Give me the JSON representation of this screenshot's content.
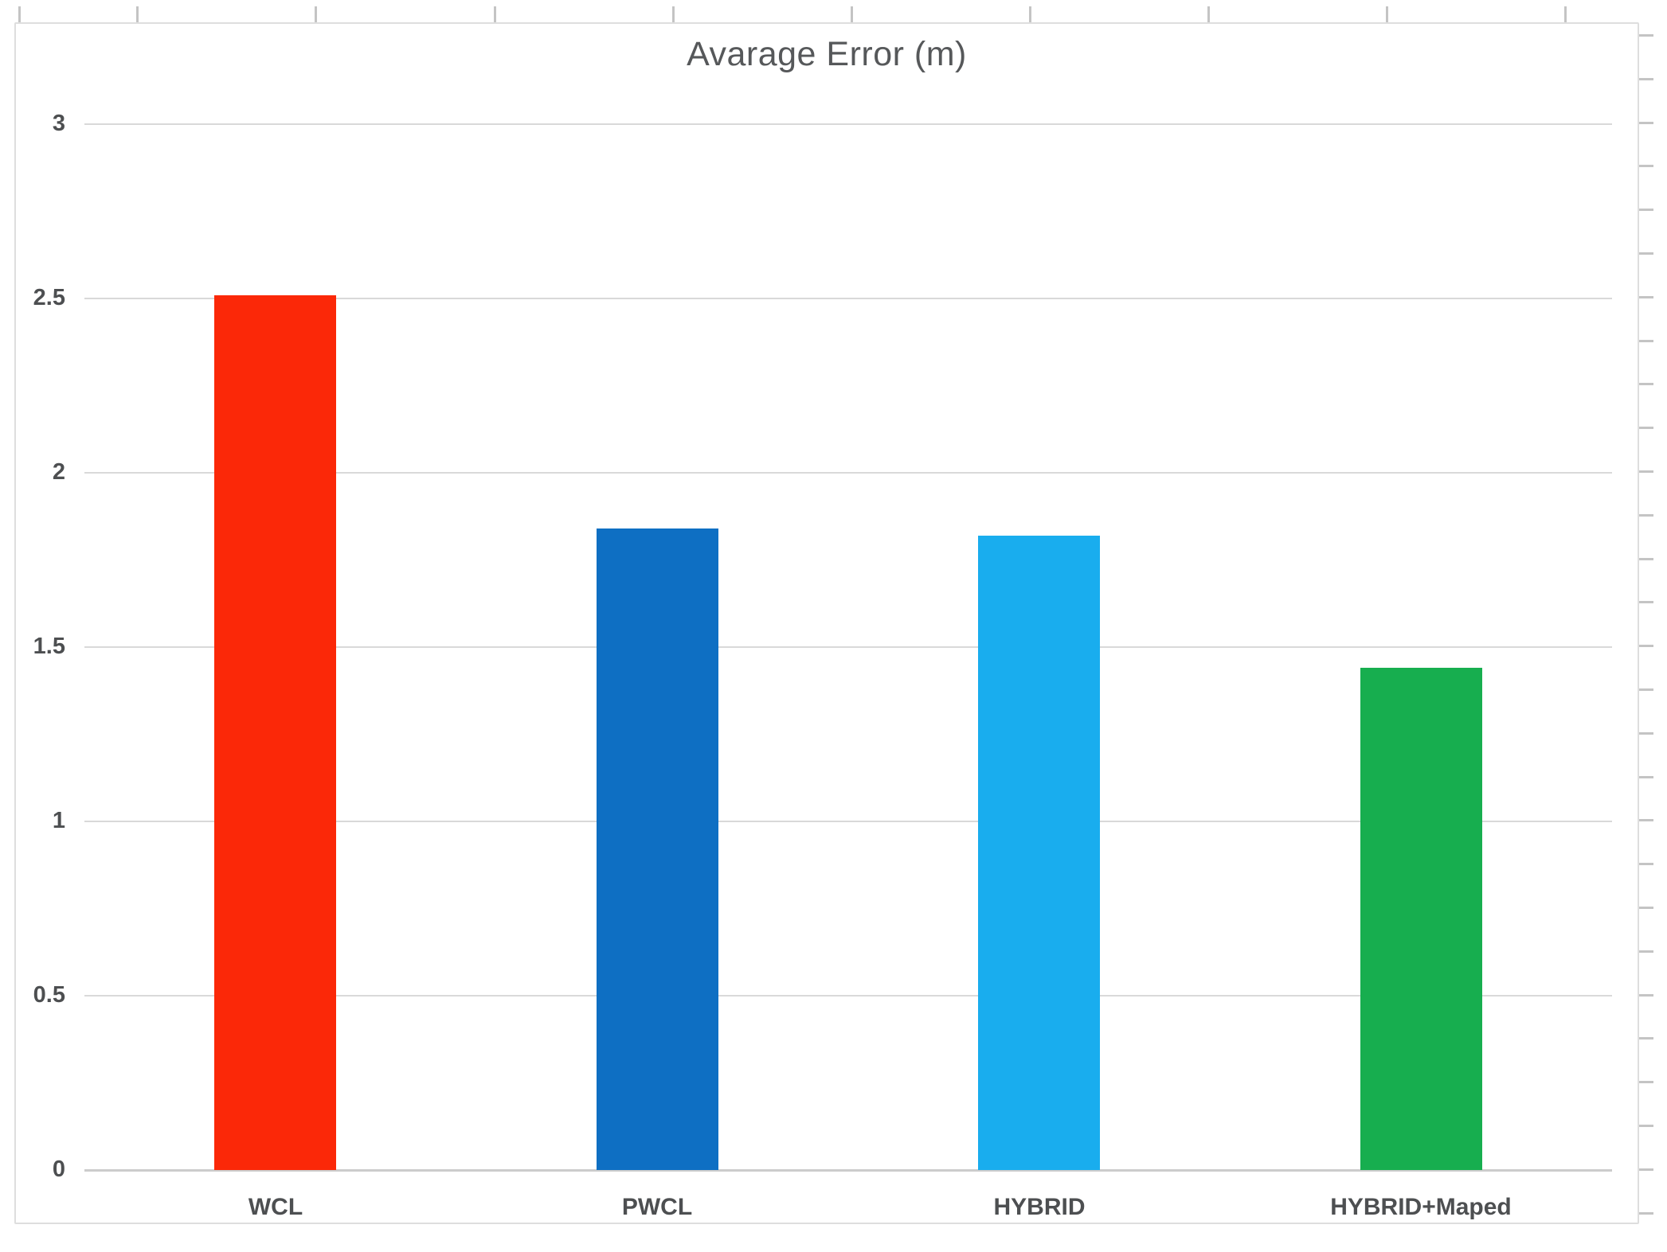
{
  "chart_data": {
    "type": "bar",
    "title": "Avarage Error (m)",
    "categories": [
      "WCL",
      "PWCL",
      "HYBRID",
      "HYBRID+Maped"
    ],
    "values": [
      2.51,
      1.84,
      1.82,
      1.44
    ],
    "bar_colors": [
      "#fb2808",
      "#0e6fc3",
      "#19adee",
      "#17ae4f"
    ],
    "xlabel": "",
    "ylabel": "",
    "ylim": [
      0,
      3
    ],
    "ytick_values": [
      0,
      0.5,
      1,
      1.5,
      2,
      2.5,
      3
    ],
    "ytick_labels": [
      "0",
      "0.5",
      "1",
      "1.5",
      "2",
      "2.5",
      "3"
    ],
    "grid": true,
    "legend_position": "none"
  },
  "colors": {
    "gridline": "#d9d9d9",
    "baseline": "#cccccc",
    "panel_border": "#dedede",
    "frame_tick": "#c4c4c4",
    "title_text": "#56585a",
    "axis_text": "#4d4f51",
    "background": "#ffffff"
  }
}
